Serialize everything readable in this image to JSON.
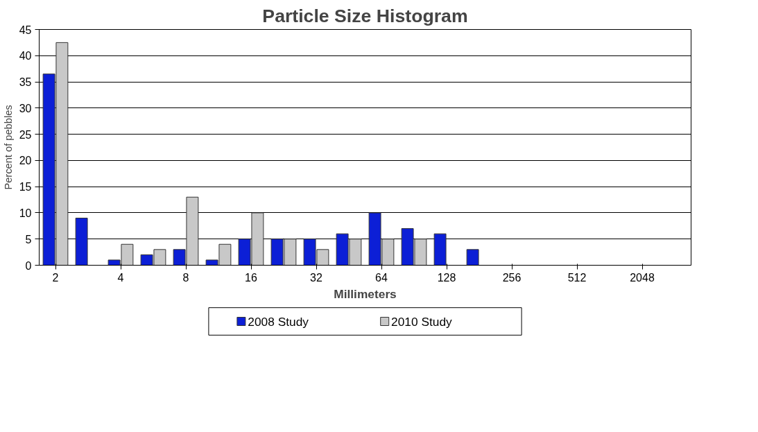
{
  "chart_data": {
    "type": "bar",
    "title": "Particle Size Histogram",
    "xlabel": "Millimeters",
    "ylabel": "Percent of pebbles",
    "categories": [
      "2",
      null,
      "4",
      null,
      "8",
      null,
      "16",
      null,
      "32",
      null,
      "64",
      null,
      "128",
      null,
      "256",
      null,
      "512",
      null,
      "2048",
      null
    ],
    "series": [
      {
        "name": "2008 Study",
        "color": "#0c1fd6",
        "values": [
          36.5,
          9,
          1,
          2,
          3,
          1,
          5,
          5,
          5,
          6,
          10,
          7,
          6,
          3,
          0,
          0,
          0,
          0,
          0,
          0
        ]
      },
      {
        "name": "2010 Study",
        "color": "#c8c8c8",
        "values": [
          42.5,
          0,
          4,
          3,
          13,
          4,
          10,
          5,
          3,
          5,
          5,
          5,
          0,
          0,
          0,
          0,
          0,
          0,
          0,
          0
        ]
      }
    ],
    "ylim": [
      0,
      45
    ],
    "yticks": [
      0,
      5,
      10,
      15,
      20,
      25,
      30,
      35,
      40,
      45
    ],
    "grid": "y",
    "legend": "bottom"
  }
}
